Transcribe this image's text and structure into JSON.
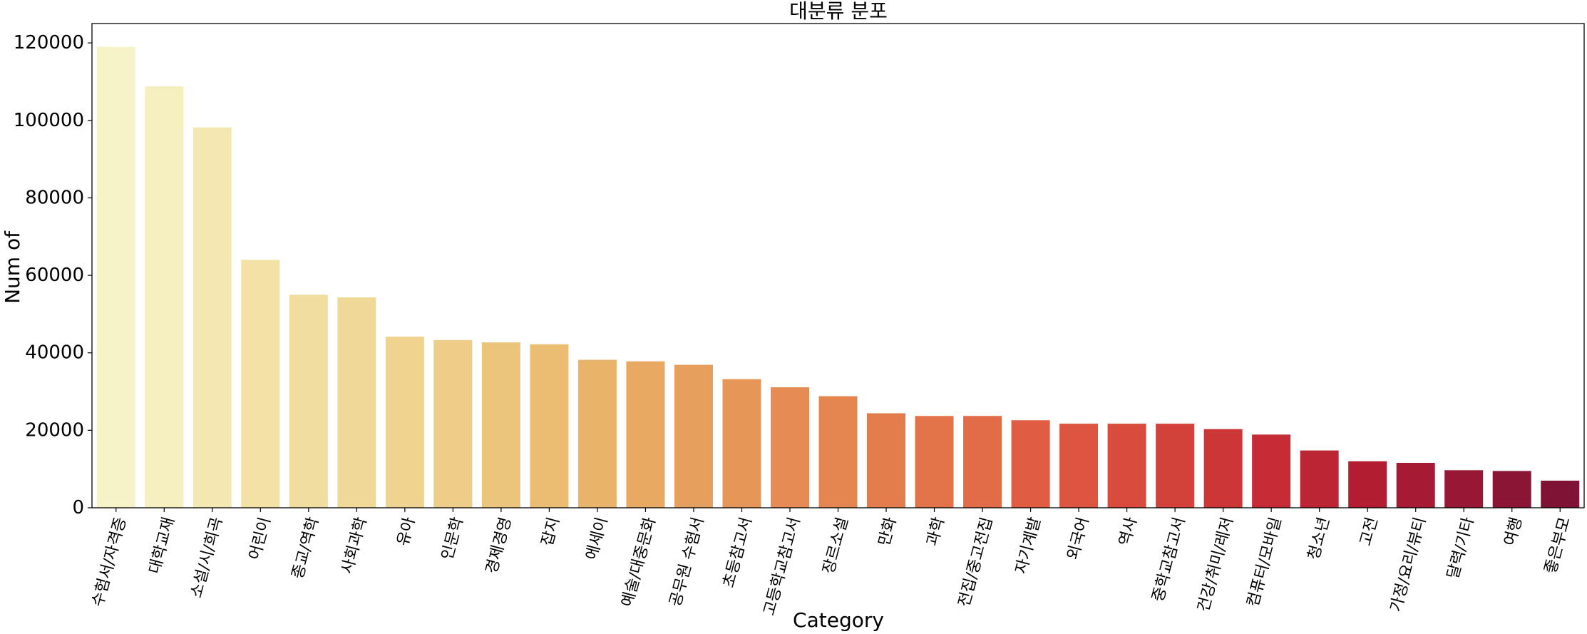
{
  "chart_data": {
    "type": "bar",
    "title": "대분류 분포",
    "xlabel": "Category",
    "ylabel": "Num of",
    "ylim": [
      0,
      125000
    ],
    "yticks": [
      0,
      20000,
      40000,
      60000,
      80000,
      100000,
      120000
    ],
    "grid": false,
    "palette": "YlOrRd",
    "categories": [
      "수험서/자격증",
      "대학교재",
      "소설/시/희곡",
      "어린이",
      "종교/역학",
      "사회과학",
      "유아",
      "인문학",
      "경제경영",
      "잡지",
      "에세이",
      "예술/대중문화",
      "공무원 수험서",
      "초등참고서",
      "고등학교참고서",
      "장르소설",
      "만화",
      "과학",
      "전집/중고전집",
      "자기계발",
      "외국어",
      "역사",
      "중학교참고서",
      "건강/취미/레저",
      "컴퓨터/모바일",
      "청소년",
      "고전",
      "가정/요리/뷰티",
      "달력/기타",
      "여행",
      "좋은부모"
    ],
    "values": [
      119000,
      108800,
      98200,
      64000,
      55000,
      54300,
      44200,
      43300,
      42700,
      42200,
      38200,
      37800,
      36900,
      33200,
      31100,
      28800,
      24400,
      23700,
      23700,
      22600,
      21700,
      21700,
      21700,
      20300,
      18900,
      14800,
      12000,
      11600,
      9700,
      9500,
      7000
    ],
    "colors": [
      "#f7f3c9",
      "#f6efbf",
      "#f4e8b2",
      "#f2e2a6",
      "#f1dd9f",
      "#f0d898",
      "#efd38f",
      "#eecd88",
      "#ecc57c",
      "#eabd72",
      "#e9b469",
      "#e8a963",
      "#e79f5d",
      "#e69657",
      "#e58b53",
      "#e5854f",
      "#e47d4c",
      "#e3744a",
      "#e26b48",
      "#e05d43",
      "#dd5440",
      "#d84b3d",
      "#d2413a",
      "#cc3637",
      "#c52c35",
      "#bc2534",
      "#b31d32",
      "#a61a33",
      "#981734",
      "#8b1535",
      "#7e1335"
    ]
  }
}
